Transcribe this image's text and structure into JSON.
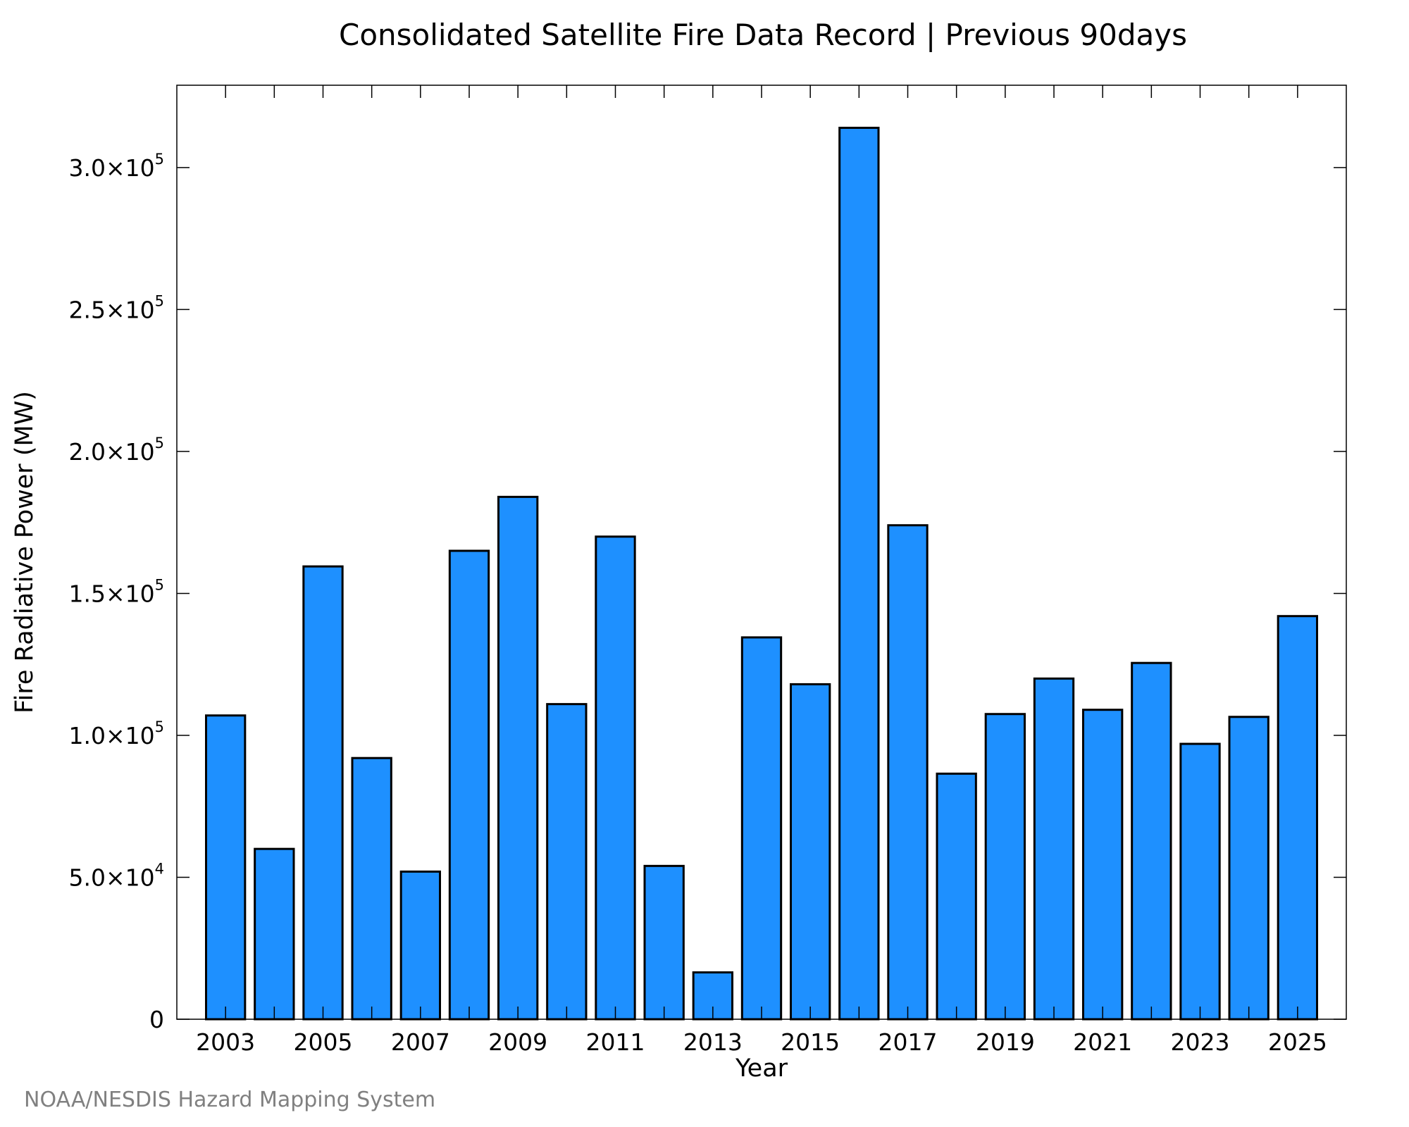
{
  "chart_data": {
    "type": "bar",
    "title": "Consolidated Satellite Fire Data Record | Previous 90days",
    "xlabel": "Year",
    "ylabel": "Fire Radiative Power (MW)",
    "credit": "NOAA/NESDIS Hazard Mapping System",
    "categories": [
      "2003",
      "2004",
      "2005",
      "2006",
      "2007",
      "2008",
      "2009",
      "2010",
      "2011",
      "2012",
      "2013",
      "2014",
      "2015",
      "2016",
      "2017",
      "2018",
      "2019",
      "2020",
      "2021",
      "2022",
      "2023",
      "2024",
      "2025"
    ],
    "values": [
      107000,
      60000,
      159500,
      92000,
      52000,
      165000,
      184000,
      111000,
      170000,
      54000,
      16500,
      134500,
      118000,
      314000,
      174000,
      86500,
      107500,
      120000,
      109000,
      125500,
      97000,
      106500,
      142000
    ],
    "x_tick_labels": [
      "2003",
      "2005",
      "2007",
      "2009",
      "2011",
      "2013",
      "2015",
      "2017",
      "2019",
      "2021",
      "2023",
      "2025"
    ],
    "y_ticks": [
      {
        "value": 0,
        "mantissa": "0",
        "exponent": ""
      },
      {
        "value": 50000,
        "mantissa": "5.0×10",
        "exponent": "4"
      },
      {
        "value": 100000,
        "mantissa": "1.0×10",
        "exponent": "5"
      },
      {
        "value": 150000,
        "mantissa": "1.5×10",
        "exponent": "5"
      },
      {
        "value": 200000,
        "mantissa": "2.0×10",
        "exponent": "5"
      },
      {
        "value": 250000,
        "mantissa": "2.5×10",
        "exponent": "5"
      },
      {
        "value": 300000,
        "mantissa": "3.0×10",
        "exponent": "5"
      }
    ],
    "ylim": [
      0,
      329000
    ],
    "xlim": [
      2002,
      2026
    ],
    "bar_color": "#1E90FF",
    "bar_edge_color": "#000000",
    "grid": false
  }
}
